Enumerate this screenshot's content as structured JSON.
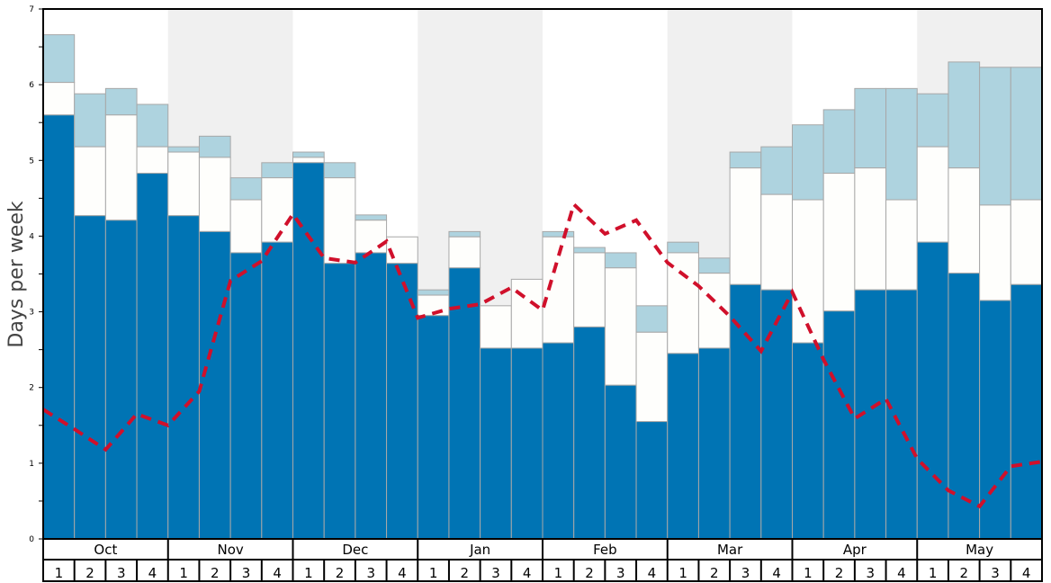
{
  "chart_data": {
    "type": "bar",
    "stacked": true,
    "ylabel": "Days per week",
    "xlabel": "",
    "ylim": [
      0,
      7
    ],
    "yticks": [
      "0",
      "1",
      "2",
      "3",
      "4",
      "5",
      "6",
      "7"
    ],
    "months": [
      "Oct",
      "Nov",
      "Dec",
      "Jan",
      "Feb",
      "Mar",
      "Apr",
      "May"
    ],
    "shaded_months": [
      "Nov",
      "Jan",
      "Mar",
      "May"
    ],
    "weeks": [
      "1",
      "2",
      "3",
      "4"
    ],
    "colors": {
      "dark": "#0074b4",
      "white": "#fefefc",
      "light": "#aed3df",
      "line": "#d0102b",
      "shade": "#f0f0f0",
      "bar_edge": "#a8a8a8"
    },
    "series": [
      {
        "key": "dark",
        "top": [
          5.6,
          4.27,
          4.21,
          4.83,
          4.27,
          4.06,
          3.78,
          3.92,
          4.97,
          3.64,
          3.78,
          3.64,
          2.95,
          3.58,
          2.52,
          2.52,
          2.59,
          2.8,
          2.03,
          1.55,
          2.45,
          2.52,
          3.36,
          3.29,
          2.59,
          3.01,
          3.29,
          3.29,
          3.92,
          3.51,
          3.15,
          3.36
        ]
      },
      {
        "key": "white",
        "top": [
          6.03,
          5.18,
          5.6,
          5.18,
          5.11,
          5.04,
          4.48,
          4.77,
          5.04,
          4.77,
          4.21,
          3.99,
          3.22,
          3.99,
          3.08,
          3.43,
          3.99,
          3.78,
          3.58,
          2.73,
          3.78,
          3.51,
          4.9,
          4.55,
          4.48,
          4.83,
          4.9,
          4.48,
          5.18,
          4.9,
          4.41,
          4.48
        ]
      },
      {
        "key": "light",
        "top": [
          6.66,
          5.88,
          5.95,
          5.74,
          5.18,
          5.32,
          4.77,
          4.97,
          5.11,
          4.97,
          4.28,
          3.99,
          3.29,
          4.06,
          3.08,
          3.43,
          4.06,
          3.85,
          3.78,
          3.08,
          3.92,
          3.71,
          5.11,
          5.18,
          5.47,
          5.67,
          5.95,
          5.95,
          5.88,
          6.3,
          6.23,
          6.23
        ]
      }
    ],
    "line": {
      "style": "dashed",
      "values": [
        1.71,
        1.45,
        1.18,
        1.65,
        1.5,
        1.95,
        3.41,
        3.67,
        4.29,
        3.71,
        3.65,
        3.93,
        2.92,
        3.04,
        3.1,
        3.32,
        3.02,
        4.42,
        4.03,
        4.21,
        3.65,
        3.34,
        2.94,
        2.48,
        3.26,
        2.37,
        1.59,
        1.85,
        1.06,
        0.64,
        0.43,
        0.96,
        1.02
      ]
    },
    "grid": false,
    "legend": "none"
  }
}
